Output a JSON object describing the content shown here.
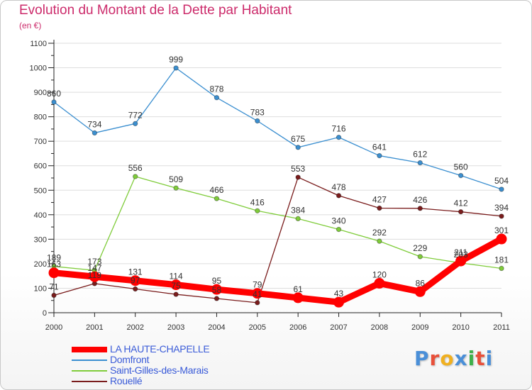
{
  "title": "Evolution du Montant de la Dette par Habitant",
  "subtitle": "(en €)",
  "logo_text": "Proxiti",
  "colors": {
    "title": "#cc2b6b",
    "legend_text": "#3a5bd8",
    "axis": "#222222",
    "grid": "#dddddd",
    "logo": [
      "#4a8fd8",
      "#e8503a",
      "#f0b020",
      "#4a8fd8",
      "#3fb04a",
      "#e8503a",
      "#4a8fd8"
    ]
  },
  "chart_data": {
    "type": "line",
    "title": "Evolution du Montant de la Dette par Habitant",
    "subtitle": "(en €)",
    "xlabel": "",
    "ylabel": "",
    "x": [
      "2000",
      "2001",
      "2002",
      "2003",
      "2004",
      "2005",
      "2006",
      "2007",
      "2008",
      "2009",
      "2010",
      "2011"
    ],
    "y_ticks": [
      "0",
      "100",
      "200",
      "300",
      "400",
      "500",
      "600",
      "700",
      "800",
      "900",
      "1000",
      "1100"
    ],
    "ylim": [
      0,
      1100
    ],
    "grid": "horizontal",
    "legend_position": "bottom-left",
    "series": [
      {
        "name": "LA HAUTE-CHAPELLE",
        "color": "#ff0000",
        "emphasis": true,
        "values": [
          163,
          147,
          131,
          114,
          95,
          79,
          61,
          43,
          120,
          86,
          211,
          301
        ],
        "labels": [
          "163",
          "147",
          "131",
          "114",
          "95",
          "79",
          "61",
          "43",
          "120",
          "86",
          "211",
          "301"
        ]
      },
      {
        "name": "Domfront",
        "color": "#3b8fd0",
        "values": [
          860,
          734,
          772,
          999,
          878,
          783,
          675,
          716,
          641,
          612,
          560,
          504
        ],
        "labels": [
          "860",
          "734",
          "772",
          "999",
          "878",
          "783",
          "675",
          "716",
          "641",
          "612",
          "560",
          "504"
        ]
      },
      {
        "name": "Saint-Gilles-des-Marais",
        "color": "#7fcc3a",
        "values": [
          189,
          173,
          556,
          509,
          466,
          416,
          384,
          340,
          292,
          229,
          203,
          181
        ],
        "labels": [
          "189",
          "173",
          "556",
          "509",
          "466",
          "416",
          "384",
          "340",
          "292",
          "229",
          "203",
          "181"
        ]
      },
      {
        "name": "Rouellé",
        "color": "#7a1c1c",
        "values": [
          71,
          119,
          97,
          75,
          58,
          41,
          553,
          478,
          427,
          426,
          412,
          394
        ],
        "labels": [
          "71",
          "119",
          "97",
          "75",
          "58",
          "41",
          "553",
          "478",
          "427",
          "426",
          "412",
          "394"
        ]
      }
    ]
  }
}
